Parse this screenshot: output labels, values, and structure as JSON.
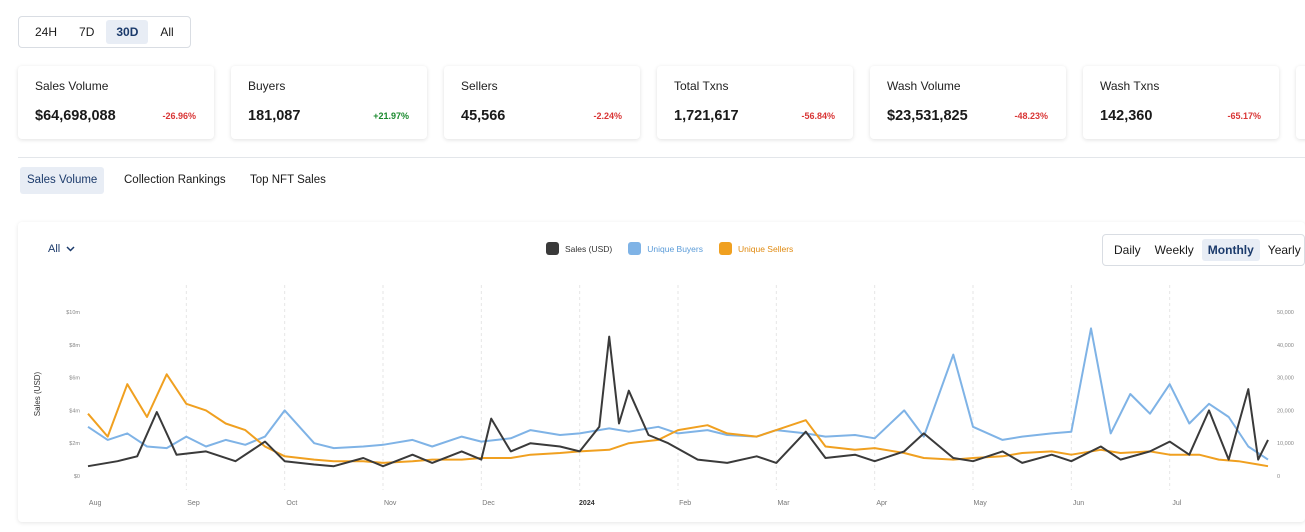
{
  "ranges": [
    {
      "label": "24H",
      "active": false
    },
    {
      "label": "7D",
      "active": false
    },
    {
      "label": "30D",
      "active": true
    },
    {
      "label": "All",
      "active": false
    }
  ],
  "stats": [
    {
      "label": "Sales Volume",
      "value": "$64,698,088",
      "change": "-26.96%",
      "dir": "neg"
    },
    {
      "label": "Buyers",
      "value": "181,087",
      "change": "+21.97%",
      "dir": "pos"
    },
    {
      "label": "Sellers",
      "value": "45,566",
      "change": "-2.24%",
      "dir": "neg"
    },
    {
      "label": "Total Txns",
      "value": "1,721,617",
      "change": "-56.84%",
      "dir": "neg"
    },
    {
      "label": "Wash Volume",
      "value": "$23,531,825",
      "change": "-48.23%",
      "dir": "neg"
    },
    {
      "label": "Wash Txns",
      "value": "142,360",
      "change": "-65.17%",
      "dir": "neg"
    }
  ],
  "tabs": [
    {
      "label": "Sales Volume",
      "active": true
    },
    {
      "label": "Collection Rankings",
      "active": false
    },
    {
      "label": "Top NFT Sales",
      "active": false
    }
  ],
  "filter": {
    "label": "All"
  },
  "intervals": [
    {
      "label": "Daily",
      "active": false
    },
    {
      "label": "Weekly",
      "active": false
    },
    {
      "label": "Monthly",
      "active": true
    },
    {
      "label": "Yearly",
      "active": false
    }
  ],
  "colors": {
    "sales": "#3a3a3a",
    "buyers": "#7fb3e6",
    "sellers": "#f0a020",
    "grid": "#e6e6e6"
  },
  "chart_data": {
    "type": "line",
    "ylabel": "Sales (USD)",
    "y_left_ticks": [
      "$0",
      "$2m",
      "$4m",
      "$6m",
      "$8m",
      "$10m"
    ],
    "y_right_ticks": [
      "0",
      "10,000",
      "20,000",
      "30,000",
      "40,000",
      "50,000"
    ],
    "ylim_left": [
      0,
      10
    ],
    "ylim_right": [
      0,
      50000
    ],
    "x_labels": [
      "Aug",
      "Sep",
      "Oct",
      "Nov",
      "Dec",
      "2024",
      "Feb",
      "Mar",
      "Apr",
      "May",
      "Jun",
      "Jul"
    ],
    "x_label_positions": [
      0.5,
      1.5,
      2.5,
      3.5,
      4.5,
      5.5,
      6.5,
      7.5,
      8.5,
      9.5,
      10.5,
      11.5
    ],
    "x_range": [
      0,
      12
    ],
    "series": [
      {
        "name": "Sales (USD)",
        "axis": "left",
        "unit": "$m",
        "x": [
          0,
          0.3,
          0.5,
          0.7,
          0.9,
          1.2,
          1.5,
          1.8,
          2.0,
          2.3,
          2.5,
          2.8,
          3.0,
          3.3,
          3.5,
          3.8,
          4.0,
          4.1,
          4.3,
          4.5,
          4.8,
          5.0,
          5.2,
          5.3,
          5.4,
          5.5,
          5.7,
          5.9,
          6.2,
          6.5,
          6.8,
          7.0,
          7.3,
          7.5,
          7.8,
          8.0,
          8.3,
          8.5,
          8.8,
          9.0,
          9.3,
          9.5,
          9.8,
          10.0,
          10.3,
          10.5,
          10.8,
          11.0,
          11.2,
          11.4,
          11.6,
          11.8,
          11.9,
          12.0
        ],
        "values": [
          0.6,
          0.9,
          1.2,
          3.9,
          1.3,
          1.5,
          0.9,
          2.1,
          0.9,
          0.7,
          0.6,
          1.1,
          0.6,
          1.3,
          0.8,
          1.5,
          1.0,
          3.5,
          1.5,
          2.0,
          1.8,
          1.5,
          3.0,
          8.5,
          3.2,
          5.2,
          2.5,
          2.0,
          1.0,
          0.8,
          1.2,
          0.8,
          2.7,
          1.1,
          1.3,
          0.9,
          1.5,
          2.6,
          1.1,
          0.9,
          1.5,
          0.8,
          1.3,
          0.9,
          1.8,
          1.0,
          1.5,
          2.1,
          1.3,
          4.0,
          1.0,
          5.3,
          1.0,
          2.2
        ]
      },
      {
        "name": "Unique Buyers",
        "axis": "right",
        "unit": "count",
        "x": [
          0,
          0.2,
          0.4,
          0.6,
          0.8,
          1.0,
          1.2,
          1.4,
          1.6,
          1.8,
          2.0,
          2.3,
          2.5,
          2.8,
          3.0,
          3.3,
          3.5,
          3.8,
          4.0,
          4.3,
          4.5,
          4.8,
          5.0,
          5.3,
          5.5,
          5.8,
          6.0,
          6.3,
          6.5,
          6.8,
          7.0,
          7.3,
          7.5,
          7.8,
          8.0,
          8.3,
          8.5,
          8.8,
          9.0,
          9.3,
          9.5,
          9.8,
          10.0,
          10.2,
          10.4,
          10.6,
          10.8,
          11.0,
          11.2,
          11.4,
          11.6,
          11.8,
          12.0
        ],
        "values": [
          15000,
          11000,
          13000,
          9000,
          8500,
          12000,
          9000,
          11000,
          9500,
          12000,
          20000,
          10000,
          8500,
          9000,
          9500,
          11000,
          9000,
          12000,
          10500,
          11500,
          14000,
          12500,
          13000,
          14500,
          13500,
          15000,
          13000,
          14000,
          12500,
          12000,
          14000,
          13000,
          12000,
          12500,
          11500,
          20000,
          12000,
          37000,
          15000,
          11000,
          12000,
          13000,
          13500,
          45000,
          13000,
          25000,
          19000,
          28000,
          16000,
          22000,
          18000,
          9000,
          5000
        ]
      },
      {
        "name": "Unique Sellers",
        "axis": "right",
        "unit": "count",
        "x": [
          0,
          0.2,
          0.4,
          0.6,
          0.8,
          1.0,
          1.2,
          1.4,
          1.6,
          1.8,
          2.0,
          2.3,
          2.5,
          2.8,
          3.0,
          3.3,
          3.5,
          3.8,
          4.0,
          4.3,
          4.5,
          4.8,
          5.0,
          5.3,
          5.5,
          5.8,
          6.0,
          6.3,
          6.5,
          6.8,
          7.0,
          7.3,
          7.5,
          7.8,
          8.0,
          8.3,
          8.5,
          8.8,
          9.0,
          9.3,
          9.5,
          9.8,
          10.0,
          10.3,
          10.5,
          10.8,
          11.0,
          11.3,
          11.5,
          11.7,
          11.9,
          12.0
        ],
        "values": [
          19000,
          12000,
          28000,
          18000,
          31000,
          22000,
          20000,
          16000,
          14000,
          9000,
          6000,
          5000,
          4500,
          4500,
          4000,
          4500,
          5000,
          5000,
          5500,
          5500,
          6500,
          7000,
          7500,
          8000,
          10000,
          11000,
          14000,
          15500,
          13000,
          12000,
          14000,
          17000,
          9000,
          8000,
          8500,
          7000,
          5500,
          5000,
          5500,
          6000,
          7000,
          7500,
          6500,
          8000,
          7000,
          7500,
          6500,
          6500,
          5000,
          4500,
          3500,
          3000
        ]
      }
    ]
  }
}
